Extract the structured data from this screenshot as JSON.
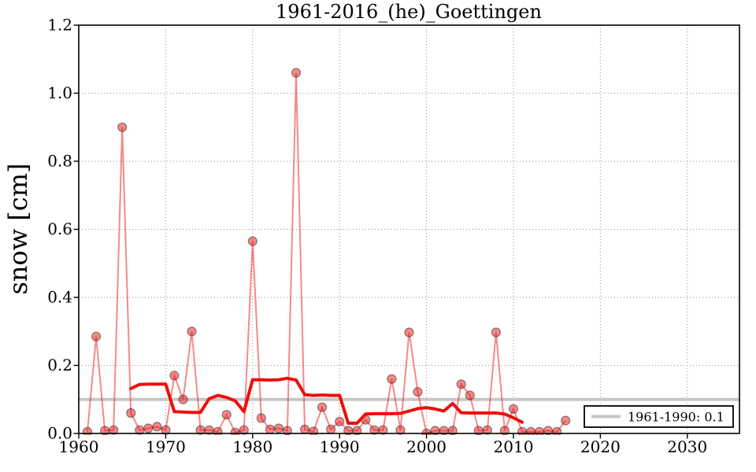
{
  "colors": {
    "annual_series_red": "#eb1414",
    "marker_edge_gray": "#323232",
    "running_mean_red": "#ee0e0e",
    "reference_gray": "#c6c6c6",
    "grid_gray": "#8c8c8c",
    "axis_black": "#000000"
  },
  "chart_data": {
    "type": "line",
    "title": "1961-2016_(he)_Goettingen",
    "xlabel": "",
    "ylabel": "snow [cm]",
    "xlim": [
      1960,
      2036
    ],
    "ylim": [
      0,
      1.2
    ],
    "x_ticks": [
      1960,
      1970,
      1980,
      1990,
      2000,
      2010,
      2020,
      2030
    ],
    "y_ticks": [
      "0.0",
      "0.2",
      "0.4",
      "0.6",
      "0.8",
      "1.0",
      "1.2"
    ],
    "grid": "dotted",
    "legend_position": "lower right",
    "series": [
      {
        "name": "annual_snow",
        "style": "faint-red-line-with-markers",
        "x": [
          1961,
          1962,
          1963,
          1964,
          1965,
          1966,
          1967,
          1968,
          1969,
          1970,
          1971,
          1972,
          1973,
          1974,
          1975,
          1976,
          1977,
          1978,
          1979,
          1980,
          1981,
          1982,
          1983,
          1984,
          1985,
          1986,
          1987,
          1988,
          1989,
          1990,
          1991,
          1992,
          1993,
          1994,
          1995,
          1996,
          1997,
          1998,
          1999,
          2000,
          2001,
          2002,
          2003,
          2004,
          2005,
          2006,
          2007,
          2008,
          2009,
          2010,
          2011,
          2012,
          2013,
          2014,
          2015,
          2016
        ],
        "values": [
          0.005,
          0.285,
          0.008,
          0.01,
          0.9,
          0.06,
          0.01,
          0.015,
          0.02,
          0.01,
          0.17,
          0.1,
          0.3,
          0.01,
          0.01,
          0.005,
          0.055,
          0.003,
          0.01,
          0.565,
          0.045,
          0.012,
          0.015,
          0.008,
          1.06,
          0.012,
          0.006,
          0.077,
          0.012,
          0.035,
          0.008,
          0.008,
          0.04,
          0.01,
          0.01,
          0.16,
          0.01,
          0.297,
          0.122,
          0.0,
          0.008,
          0.008,
          0.008,
          0.145,
          0.112,
          0.008,
          0.01,
          0.297,
          0.008,
          0.072,
          0.005,
          0.005,
          0.005,
          0.008,
          0.005,
          0.038
        ]
      },
      {
        "name": "running_mean",
        "style": "thick-red-line",
        "x": [
          1966,
          1967,
          1968,
          1969,
          1970,
          1971,
          1972,
          1973,
          1974,
          1975,
          1976,
          1977,
          1978,
          1979,
          1980,
          1981,
          1982,
          1983,
          1984,
          1985,
          1986,
          1987,
          1988,
          1989,
          1990,
          1991,
          1992,
          1993,
          1994,
          1995,
          1996,
          1997,
          1998,
          1999,
          2000,
          2001,
          2002,
          2003,
          2004,
          2005,
          2006,
          2007,
          2008,
          2009,
          2010,
          2011
        ],
        "values": [
          0.132,
          0.144,
          0.145,
          0.145,
          0.145,
          0.064,
          0.063,
          0.062,
          0.062,
          0.102,
          0.112,
          0.106,
          0.096,
          0.064,
          0.158,
          0.158,
          0.157,
          0.158,
          0.162,
          0.157,
          0.114,
          0.112,
          0.113,
          0.112,
          0.112,
          0.03,
          0.03,
          0.057,
          0.058,
          0.058,
          0.058,
          0.059,
          0.066,
          0.073,
          0.076,
          0.072,
          0.066,
          0.088,
          0.061,
          0.06,
          0.06,
          0.06,
          0.06,
          0.057,
          0.046,
          0.033
        ]
      }
    ],
    "reference": {
      "value": 0.1,
      "label": "1961-1990: 0.1"
    }
  }
}
